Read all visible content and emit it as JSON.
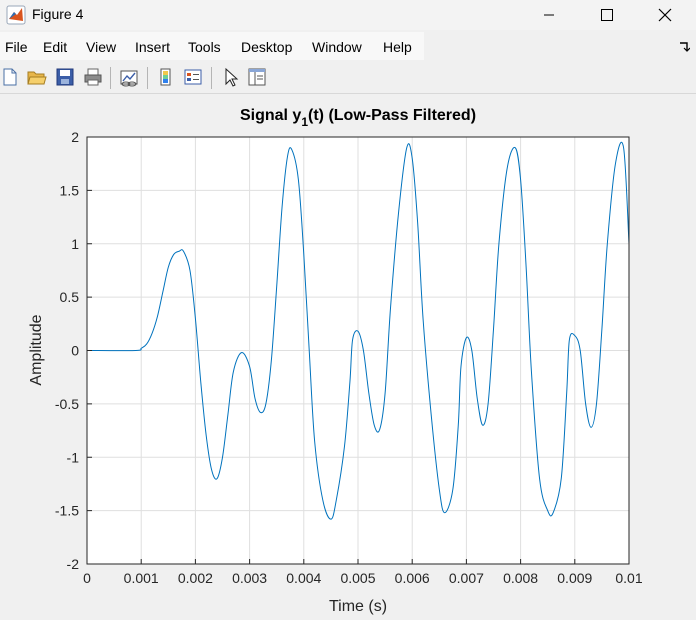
{
  "window": {
    "title": "Figure 4",
    "minimize_icon": "minimize-icon",
    "maximize_icon": "maximize-icon",
    "close_icon": "close-icon"
  },
  "menu": {
    "items": [
      "File",
      "Edit",
      "View",
      "Insert",
      "Tools",
      "Desktop",
      "Window",
      "Help"
    ]
  },
  "toolbar": {
    "icons": [
      "new-figure-icon",
      "open-file-icon",
      "save-icon",
      "print-icon",
      "link-plot-icon",
      "colorbar-icon",
      "legend-icon",
      "edit-plot-icon",
      "property-inspector-icon"
    ]
  },
  "colors": {
    "line": "#0072BD",
    "grid": "#dfdfdf",
    "axes_bg": "#ffffff",
    "figure_bg": "#f0f0f0"
  },
  "chart_data": {
    "type": "line",
    "title_main": "Signal y",
    "title_sub": "1",
    "title_end": "(t) (Low-Pass Filtered)",
    "xlabel": "Time (s)",
    "ylabel": "Amplitude",
    "xlim": [
      0,
      0.01
    ],
    "ylim": [
      -2,
      2
    ],
    "grid": true,
    "xticks": [
      0,
      0.001,
      0.002,
      0.003,
      0.004,
      0.005,
      0.006,
      0.007,
      0.008,
      0.009,
      0.01
    ],
    "xtick_labels": [
      "0",
      "0.001",
      "0.002",
      "0.003",
      "0.004",
      "0.005",
      "0.006",
      "0.007",
      "0.008",
      "0.009",
      "0.01"
    ],
    "yticks": [
      2,
      1.5,
      1,
      0.5,
      0,
      -0.5,
      -1,
      -1.5,
      -2
    ],
    "ytick_labels": [
      "2",
      "1.5",
      "1",
      "0.5",
      "0",
      "-0.5",
      "-1",
      "-1.5",
      "-2"
    ],
    "series": [
      {
        "x": [
          0,
          0.0009,
          0.001,
          0.0011,
          0.0012,
          0.0013,
          0.0014,
          0.0015,
          0.0016,
          0.0017,
          0.00178,
          0.0019,
          0.002,
          0.0021,
          0.0022,
          0.0023,
          0.0024,
          0.0025,
          0.0026,
          0.0027,
          0.00285,
          0.003,
          0.0031,
          0.0032,
          0.0033,
          0.0034,
          0.0035,
          0.0036,
          0.0037,
          0.00378,
          0.0039,
          0.004,
          0.0041,
          0.0042,
          0.00435,
          0.0045,
          0.0046,
          0.00475,
          0.00485,
          0.0049,
          0.005,
          0.0051,
          0.0052,
          0.0053,
          0.0054,
          0.0055,
          0.0056,
          0.00575,
          0.0059,
          0.006,
          0.0061,
          0.0062,
          0.00635,
          0.0065,
          0.0066,
          0.00675,
          0.00685,
          0.0069,
          0.007,
          0.0071,
          0.0072,
          0.0073,
          0.0074,
          0.0075,
          0.0076,
          0.00775,
          0.0079,
          0.008,
          0.0081,
          0.0082,
          0.00835,
          0.0085,
          0.0086,
          0.00875,
          0.00885,
          0.0089,
          0.009,
          0.0091,
          0.0092,
          0.0093,
          0.0094,
          0.0095,
          0.0096,
          0.00975,
          0.0099,
          0.01
        ],
        "y": [
          0,
          0,
          0.02,
          0.06,
          0.16,
          0.32,
          0.55,
          0.78,
          0.9,
          0.93,
          0.93,
          0.75,
          0.3,
          -0.3,
          -0.8,
          -1.12,
          -1.2,
          -1.0,
          -0.6,
          -0.2,
          -0.02,
          -0.15,
          -0.45,
          -0.58,
          -0.5,
          -0.1,
          0.6,
          1.35,
          1.82,
          1.88,
          1.6,
          0.9,
          0.0,
          -0.85,
          -1.4,
          -1.58,
          -1.4,
          -0.9,
          -0.3,
          0.1,
          0.18,
          0.0,
          -0.4,
          -0.7,
          -0.74,
          -0.4,
          0.4,
          1.3,
          1.9,
          1.8,
          1.2,
          0.3,
          -0.6,
          -1.3,
          -1.52,
          -1.3,
          -0.7,
          -0.15,
          0.12,
          0.0,
          -0.45,
          -0.7,
          -0.5,
          0.2,
          1.0,
          1.7,
          1.9,
          1.6,
          0.8,
          -0.2,
          -1.2,
          -1.5,
          -1.52,
          -1.2,
          -0.4,
          0.1,
          0.14,
          0.0,
          -0.5,
          -0.72,
          -0.5,
          0.2,
          1.0,
          1.75,
          1.9,
          1.0
        ]
      }
    ]
  }
}
